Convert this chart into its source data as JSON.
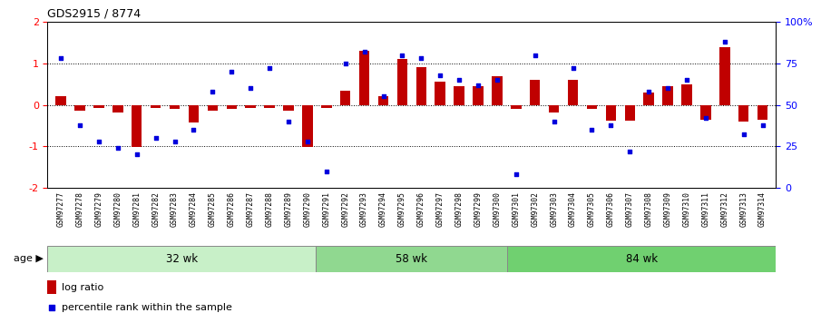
{
  "title": "GDS2915 / 8774",
  "samples": [
    "GSM97277",
    "GSM97278",
    "GSM97279",
    "GSM97280",
    "GSM97281",
    "GSM97282",
    "GSM97283",
    "GSM97284",
    "GSM97285",
    "GSM97286",
    "GSM97287",
    "GSM97288",
    "GSM97289",
    "GSM97290",
    "GSM97291",
    "GSM97292",
    "GSM97293",
    "GSM97294",
    "GSM97295",
    "GSM97296",
    "GSM97297",
    "GSM97298",
    "GSM97299",
    "GSM97300",
    "GSM97301",
    "GSM97302",
    "GSM97303",
    "GSM97304",
    "GSM97305",
    "GSM97306",
    "GSM97307",
    "GSM97308",
    "GSM97309",
    "GSM97310",
    "GSM97311",
    "GSM97312",
    "GSM97313",
    "GSM97314"
  ],
  "log_ratio": [
    0.2,
    -0.15,
    -0.08,
    -0.18,
    -1.02,
    -0.08,
    -0.1,
    -0.42,
    -0.15,
    -0.1,
    -0.08,
    -0.08,
    -0.15,
    -1.02,
    -0.08,
    0.35,
    1.3,
    0.22,
    1.1,
    0.9,
    0.55,
    0.45,
    0.45,
    0.68,
    -0.1,
    0.6,
    -0.18,
    0.6,
    -0.1,
    -0.38,
    -0.38,
    0.3,
    0.45,
    0.5,
    -0.35,
    1.4,
    -0.4,
    -0.35
  ],
  "percentile_rank": [
    78,
    38,
    28,
    24,
    20,
    30,
    28,
    35,
    58,
    70,
    60,
    72,
    40,
    28,
    10,
    75,
    82,
    55,
    80,
    78,
    68,
    65,
    62,
    65,
    8,
    80,
    40,
    72,
    35,
    38,
    22,
    58,
    60,
    65,
    42,
    88,
    32,
    38
  ],
  "groups": [
    {
      "label": "32 wk",
      "start": 0,
      "end": 14,
      "color": "#c8f0c8"
    },
    {
      "label": "58 wk",
      "start": 14,
      "end": 24,
      "color": "#90d890"
    },
    {
      "label": "84 wk",
      "start": 24,
      "end": 38,
      "color": "#70d070"
    }
  ],
  "bar_color": "#c00000",
  "dot_color": "#0000dd",
  "ylim_left": [
    -2,
    2
  ],
  "yticks_left": [
    -2,
    -1,
    0,
    1,
    2
  ],
  "yticks_right_vals": [
    0,
    25,
    50,
    75,
    100
  ],
  "ytick_labels_right": [
    "0",
    "25",
    "50",
    "75",
    "100%"
  ],
  "age_label": "age",
  "legend_bar": "log ratio",
  "legend_dot": "percentile rank within the sample",
  "bg_color": "#ffffff",
  "bar_width": 0.55,
  "title_fontsize": 9,
  "axis_fontsize": 8
}
